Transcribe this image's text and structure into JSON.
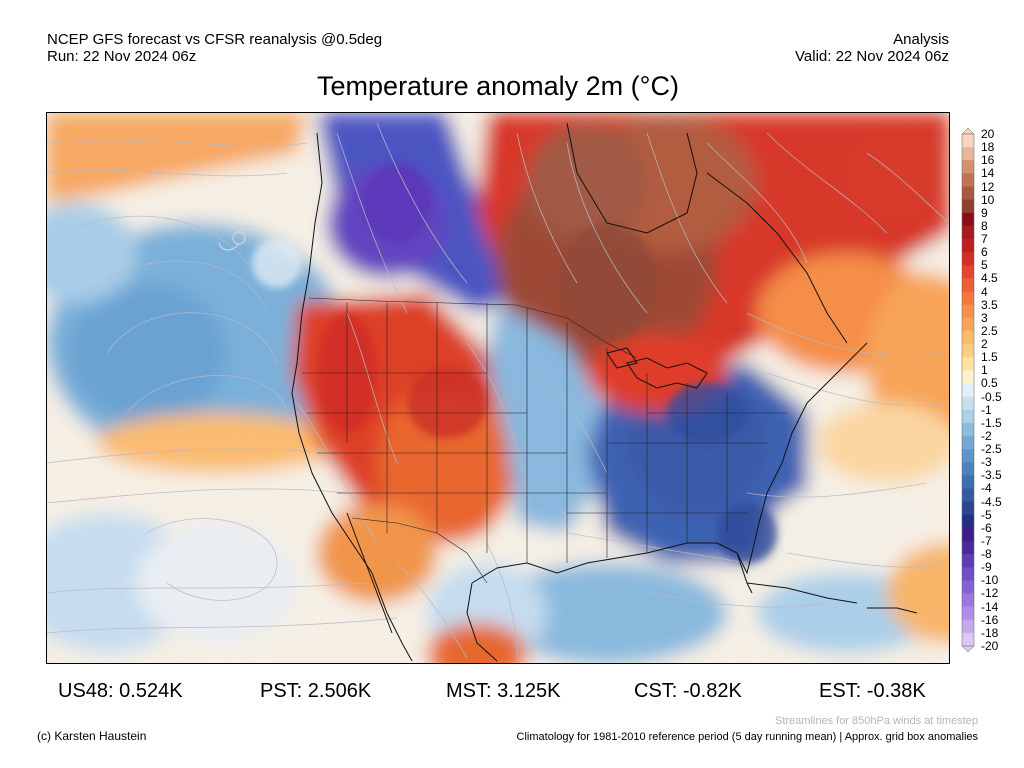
{
  "header": {
    "line1_left": "NCEP GFS forecast vs CFSR reanalysis @0.5deg",
    "line2_left": "Run: 22 Nov 2024 06z",
    "line1_right": "Analysis",
    "line2_right": "Valid: 22 Nov 2024 06z"
  },
  "title": "Temperature anomaly 2m (°C)",
  "colorbar": {
    "labels": [
      "20",
      "18",
      "16",
      "14",
      "12",
      "10",
      "9",
      "8",
      "7",
      "6",
      "5",
      "4.5",
      "4",
      "3.5",
      "3",
      "2.5",
      "2",
      "1.5",
      "1",
      "0.5",
      "-0.5",
      "-1",
      "-1.5",
      "-2",
      "-2.5",
      "-3",
      "-3.5",
      "-4",
      "-4.5",
      "-5",
      "-6",
      "-7",
      "-8",
      "-9",
      "-10",
      "-12",
      "-14",
      "-16",
      "-18",
      "-20"
    ],
    "colors": [
      "#f7d4bf",
      "#e9b597",
      "#d49270",
      "#bf7352",
      "#a8583e",
      "#8f412e",
      "#8b0f1a",
      "#a51a1f",
      "#c01f22",
      "#d62e26",
      "#e4452e",
      "#ec5e35",
      "#f2783d",
      "#f69148",
      "#f8a657",
      "#fbbb68",
      "#fcce7e",
      "#fde1a0",
      "#fff0cc",
      "#ffffff",
      "#e3eef8",
      "#c9e0f1",
      "#abcfe8",
      "#8dbcdf",
      "#73a9d4",
      "#5c94c8",
      "#4b82bd",
      "#3f6fb1",
      "#3559a2",
      "#2c4493",
      "#252f86",
      "#3a1f8a",
      "#4b2aa0",
      "#5d3db6",
      "#704fc8",
      "#8562d6",
      "#9a78e0",
      "#b08fe8",
      "#c6a9ef",
      "#dcc6f6"
    ]
  },
  "map": {
    "streamlines_note": "850hPa wind streamlines",
    "icons": [
      "storm-icon"
    ]
  },
  "stats": {
    "us48": "US48: 0.524K",
    "pst": "PST: 2.506K",
    "mst": "MST: 3.125K",
    "cst": "CST: -0.82K",
    "est": "EST: -0.38K"
  },
  "footer": {
    "credit": "(c) Karsten Haustein",
    "streamlines": "Streamlines for 850hPa winds at timestep",
    "climatology": "Climatology for 1981-2010 reference period (5 day running mean) | Approx. grid box anomalies"
  }
}
